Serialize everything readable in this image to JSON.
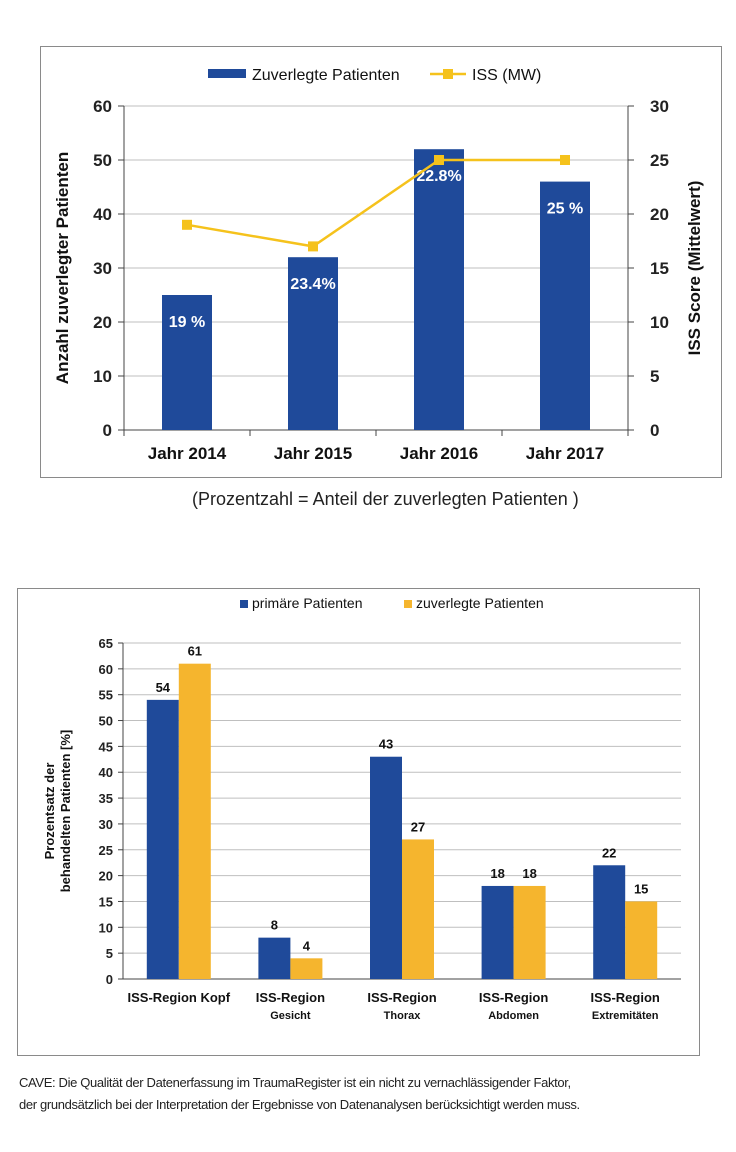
{
  "colors": {
    "navy": "#1f4a9a",
    "yellow": "#f5c21c",
    "orange": "#f5b52e",
    "grid": "#bfbfbf"
  },
  "chart_data": [
    {
      "type": "bar",
      "categories": [
        "Jahr 2014",
        "Jahr 2015",
        "Jahr 2016",
        "Jahr 2017"
      ],
      "series": [
        {
          "name": "Zuverlegte Patienten",
          "type": "bar",
          "axis": "left",
          "values": [
            25,
            32,
            52,
            46
          ]
        },
        {
          "name": "ISS (MW)",
          "type": "line",
          "axis": "right",
          "values": [
            19,
            17,
            25,
            25
          ]
        }
      ],
      "bar_labels": [
        "19 %",
        "23.4%",
        "22.8%",
        "25 %"
      ],
      "ylabel": "Anzahl zuverlegter Patienten",
      "y2label": "ISS Score (Mittelwert)",
      "ylim": [
        0,
        60
      ],
      "y2lim": [
        0,
        30
      ],
      "yticks": [
        "0",
        "10",
        "20",
        "30",
        "40",
        "50",
        "60"
      ],
      "y2ticks": [
        "0",
        "5",
        "10",
        "15",
        "20",
        "25",
        "30"
      ],
      "legend": "top",
      "grid": true
    },
    {
      "type": "bar",
      "categories": [
        {
          "line1": "ISS-Region Kopf",
          "line2": ""
        },
        {
          "line1": "ISS-Region",
          "line2": "Gesicht"
        },
        {
          "line1": "ISS-Region",
          "line2": "Thorax"
        },
        {
          "line1": "ISS-Region",
          "line2": "Abdomen"
        },
        {
          "line1": "ISS-Region",
          "line2": "Extremitäten"
        }
      ],
      "series": [
        {
          "name": "primäre Patienten",
          "values": [
            54,
            8,
            43,
            18,
            22
          ],
          "labels": [
            "54",
            "8",
            "43",
            "18",
            "22"
          ]
        },
        {
          "name": "zuverlegte Patienten",
          "values": [
            61,
            4,
            27,
            18,
            15
          ],
          "labels": [
            "61",
            "4",
            "27",
            "18",
            "15"
          ]
        }
      ],
      "ylabel_lines": [
        "Prozentsatz der",
        "behandelten Patienten [%]"
      ],
      "ylim": [
        0,
        65
      ],
      "yticks": [
        "0",
        "5",
        "10",
        "15",
        "20",
        "25",
        "30",
        "35",
        "40",
        "45",
        "50",
        "55",
        "60",
        "65"
      ],
      "legend": "top",
      "grid": true
    }
  ],
  "caption": "(Prozentzahl = Anteil der zuverlegten Patienten )",
  "note": {
    "line1": "CAVE: Die Qualität der Datenerfassung im TraumaRegister ist ein nicht zu vernachlässigender Faktor,",
    "line2": "der grundsätzlich bei der Interpretation der Ergebnisse von Datenanalysen berücksichtigt werden muss."
  }
}
